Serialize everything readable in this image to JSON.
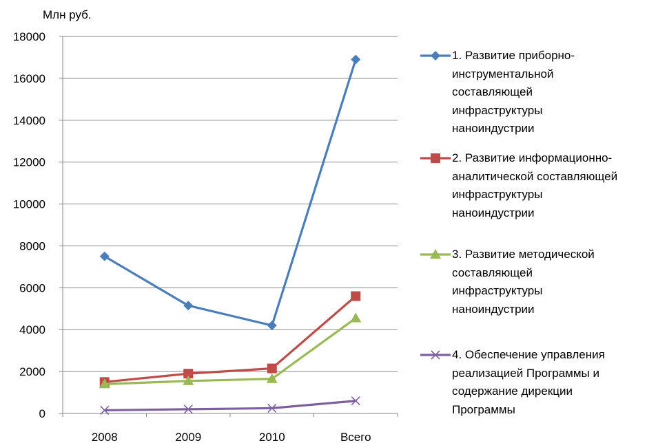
{
  "chart_data": {
    "type": "line",
    "unit_label": "Млн руб.",
    "categories": [
      "2008",
      "2009",
      "2010",
      "Всего"
    ],
    "ylim": [
      0,
      18000
    ],
    "yticks": [
      "0",
      "2000",
      "4000",
      "6000",
      "8000",
      "10000",
      "12000",
      "14000",
      "16000",
      "18000"
    ],
    "grid": true,
    "legend_position": "right",
    "series": [
      {
        "name": "1. Развитие приборно-инструментальной составляющей инфраструктуры наноиндустрии",
        "legend_lines": "1. Развитие приборно-\nинструментальной\nсоставляющей\nинфраструктуры\nнаноиндустрии",
        "color": "#4a7ebb",
        "marker": "diamond",
        "values": [
          7500,
          5150,
          4200,
          16900
        ]
      },
      {
        "name": "2. Развитие информационно-аналитической составляющей инфраструктуры наноиндустрии",
        "legend_lines": "2. Развитие информационно-\nаналитической составляющей\nинфраструктуры\nнаноиндустрии",
        "color": "#be4b48",
        "marker": "square",
        "values": [
          1500,
          1900,
          2150,
          5600
        ]
      },
      {
        "name": "3. Развитие методической составляющей инфраструктуры наноиндустрии",
        "legend_lines": "3. Развитие методической\nсоставляющей\nинфраструктуры\nнаноиндустрии",
        "color": "#98b954",
        "marker": "triangle",
        "values": [
          1400,
          1550,
          1650,
          4550
        ]
      },
      {
        "name": "4. Обеспечение управления реализацией Программы и содержание дирекции Программы",
        "legend_lines": "4. Обеспечение управления\nреализацией Программы и\nсодержание дирекции\nПрограммы",
        "color": "#7d60a0",
        "marker": "x",
        "values": [
          150,
          200,
          250,
          600
        ]
      }
    ]
  }
}
